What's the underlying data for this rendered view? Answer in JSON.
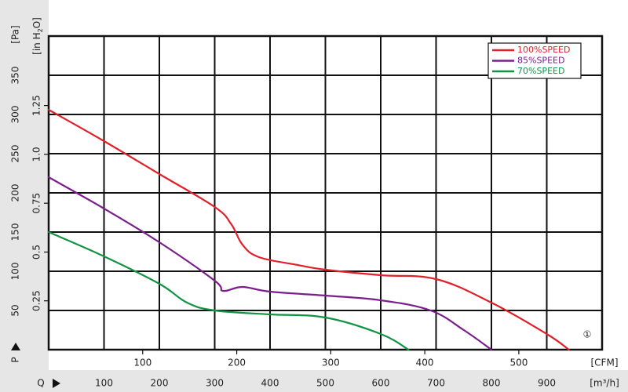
{
  "chart_data": {
    "type": "line",
    "title": "",
    "x_axis": {
      "label": "Q",
      "unit": "[m³/h]",
      "range": [
        0,
        1000
      ],
      "ticks": [
        100,
        200,
        300,
        400,
        500,
        600,
        700,
        800,
        900
      ]
    },
    "x2_axis": {
      "unit": "[CFM]",
      "ticks": [
        100,
        200,
        300,
        400,
        500
      ]
    },
    "y_axis": {
      "label": "P",
      "unit": "[Pa]",
      "range": [
        0,
        400
      ],
      "ticks": [
        50,
        100,
        150,
        200,
        250,
        300,
        350
      ]
    },
    "y2_axis": {
      "unit": "[in H2O]",
      "ticks": [
        "0.25",
        "0.5",
        "0.75",
        "1.0",
        "1.25"
      ],
      "tick_values_pa": [
        62.3,
        124.5,
        186.8,
        249.1,
        311.4
      ]
    },
    "legend": {
      "position": "top-right",
      "entries": [
        "100%SPEED",
        "85%SPEED",
        "70%SPEED"
      ]
    },
    "annotation": "①",
    "grid": true,
    "series": [
      {
        "name": "100%SPEED",
        "color": "#e0202a",
        "points": [
          [
            0,
            306
          ],
          [
            100,
            266
          ],
          [
            200,
            224
          ],
          [
            300,
            182
          ],
          [
            330,
            160
          ],
          [
            350,
            134
          ],
          [
            380,
            118
          ],
          [
            450,
            108
          ],
          [
            500,
            102
          ],
          [
            600,
            95
          ],
          [
            700,
            90
          ],
          [
            800,
            60
          ],
          [
            900,
            20
          ],
          [
            940,
            0
          ]
        ]
      },
      {
        "name": "85%SPEED",
        "color": "#7a1e8c",
        "points": [
          [
            0,
            220
          ],
          [
            100,
            180
          ],
          [
            200,
            137
          ],
          [
            300,
            88
          ],
          [
            315,
            75
          ],
          [
            350,
            80
          ],
          [
            400,
            74
          ],
          [
            500,
            69
          ],
          [
            600,
            63
          ],
          [
            690,
            50
          ],
          [
            750,
            25
          ],
          [
            800,
            0
          ]
        ]
      },
      {
        "name": "70%SPEED",
        "color": "#109443",
        "points": [
          [
            0,
            150
          ],
          [
            100,
            119
          ],
          [
            200,
            84
          ],
          [
            250,
            60
          ],
          [
            300,
            50
          ],
          [
            400,
            45
          ],
          [
            500,
            41
          ],
          [
            600,
            20
          ],
          [
            650,
            0
          ]
        ]
      }
    ]
  }
}
